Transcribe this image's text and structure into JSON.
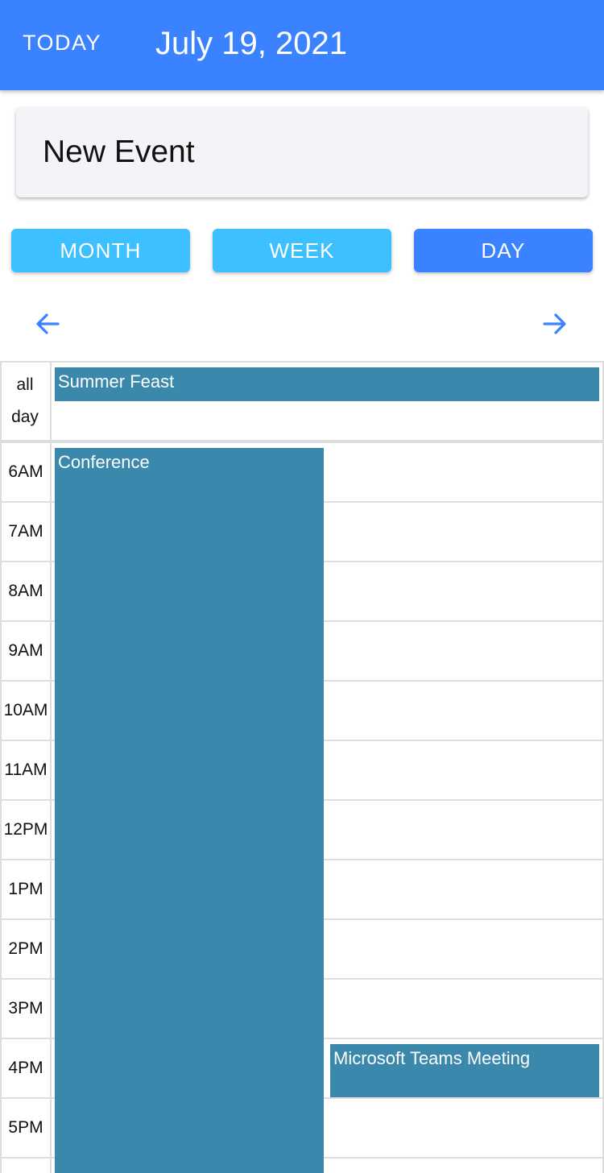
{
  "header": {
    "today_label": "TODAY",
    "date_title": "July 19, 2021"
  },
  "new_event": {
    "label": "New Event"
  },
  "views": {
    "month": "MONTH",
    "week": "WEEK",
    "day": "DAY",
    "active": "DAY"
  },
  "nav": {
    "prev_icon": "arrow-left-icon",
    "next_icon": "arrow-right-icon"
  },
  "calendar": {
    "all_day_label_line1": "all",
    "all_day_label_line2": "day",
    "hours": [
      "6AM",
      "7AM",
      "8AM",
      "9AM",
      "10AM",
      "11AM",
      "12PM",
      "1PM",
      "2PM",
      "3PM",
      "4PM",
      "5PM"
    ],
    "events": {
      "summer_feast": "Summer Feast",
      "conference": "Conference",
      "teams_meeting": "Microsoft Teams Meeting"
    }
  },
  "colors": {
    "header_bg": "#3a82ff",
    "view_button": "#3cc0ff",
    "view_button_active": "#3a82ff",
    "event_bg": "#3a89ad",
    "grid_line": "#dddddd"
  }
}
